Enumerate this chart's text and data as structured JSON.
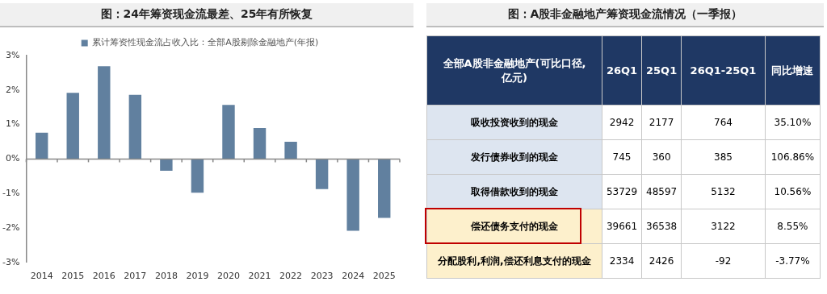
{
  "chart_data": [
    {
      "type": "bar",
      "title": "图：24年筹资现金流最差、25年有所恢复",
      "categories": [
        "2014",
        "2015",
        "2016",
        "2017",
        "2018",
        "2019",
        "2020",
        "2021",
        "2022",
        "2023",
        "2024",
        "2025"
      ],
      "series": [
        {
          "name": "累计筹资性现金流占收入比：全部A股剔除金融地产(年报)",
          "color": "#61809f",
          "values": [
            0.76,
            1.92,
            2.69,
            1.86,
            -0.34,
            -0.98,
            1.57,
            0.9,
            0.5,
            -0.87,
            -2.08,
            -1.71
          ]
        }
      ],
      "ylim": [
        -3,
        3
      ],
      "yticks": [
        {
          "value": -3,
          "label": "-3%"
        },
        {
          "value": -2,
          "label": "-2%"
        },
        {
          "value": -1,
          "label": "-1%"
        },
        {
          "value": 0,
          "label": "0%"
        },
        {
          "value": 1,
          "label": "1%"
        },
        {
          "value": 2,
          "label": "2%"
        },
        {
          "value": 3,
          "label": "3%"
        }
      ],
      "legend": "top"
    },
    {
      "type": "other",
      "title": "图：A股非金融地产筹资现金流情况（一季报）",
      "ylabel": "全部A股非金融地产(可比口径,亿元)",
      "categories": [
        "26Q1",
        "25Q1",
        "26Q1-25Q1",
        "同比增速"
      ],
      "y_categories": [
        "吸收投资收到的现金",
        "发行债券收到的现金",
        "取得借款收到的现金",
        "偿还债务支付的现金",
        "分配股利,利润,偿还利息支付的现金"
      ],
      "cell_labels": [
        [
          "2942",
          "2177",
          "764",
          "35.10%"
        ],
        [
          "745",
          "360",
          "385",
          "106.86%"
        ],
        [
          "53729",
          "48597",
          "5132",
          "10.56%"
        ],
        [
          "39661",
          "36538",
          "3122",
          "8.55%"
        ],
        [
          "2334",
          "2426",
          "-92",
          "-3.77%"
        ]
      ]
    }
  ]
}
